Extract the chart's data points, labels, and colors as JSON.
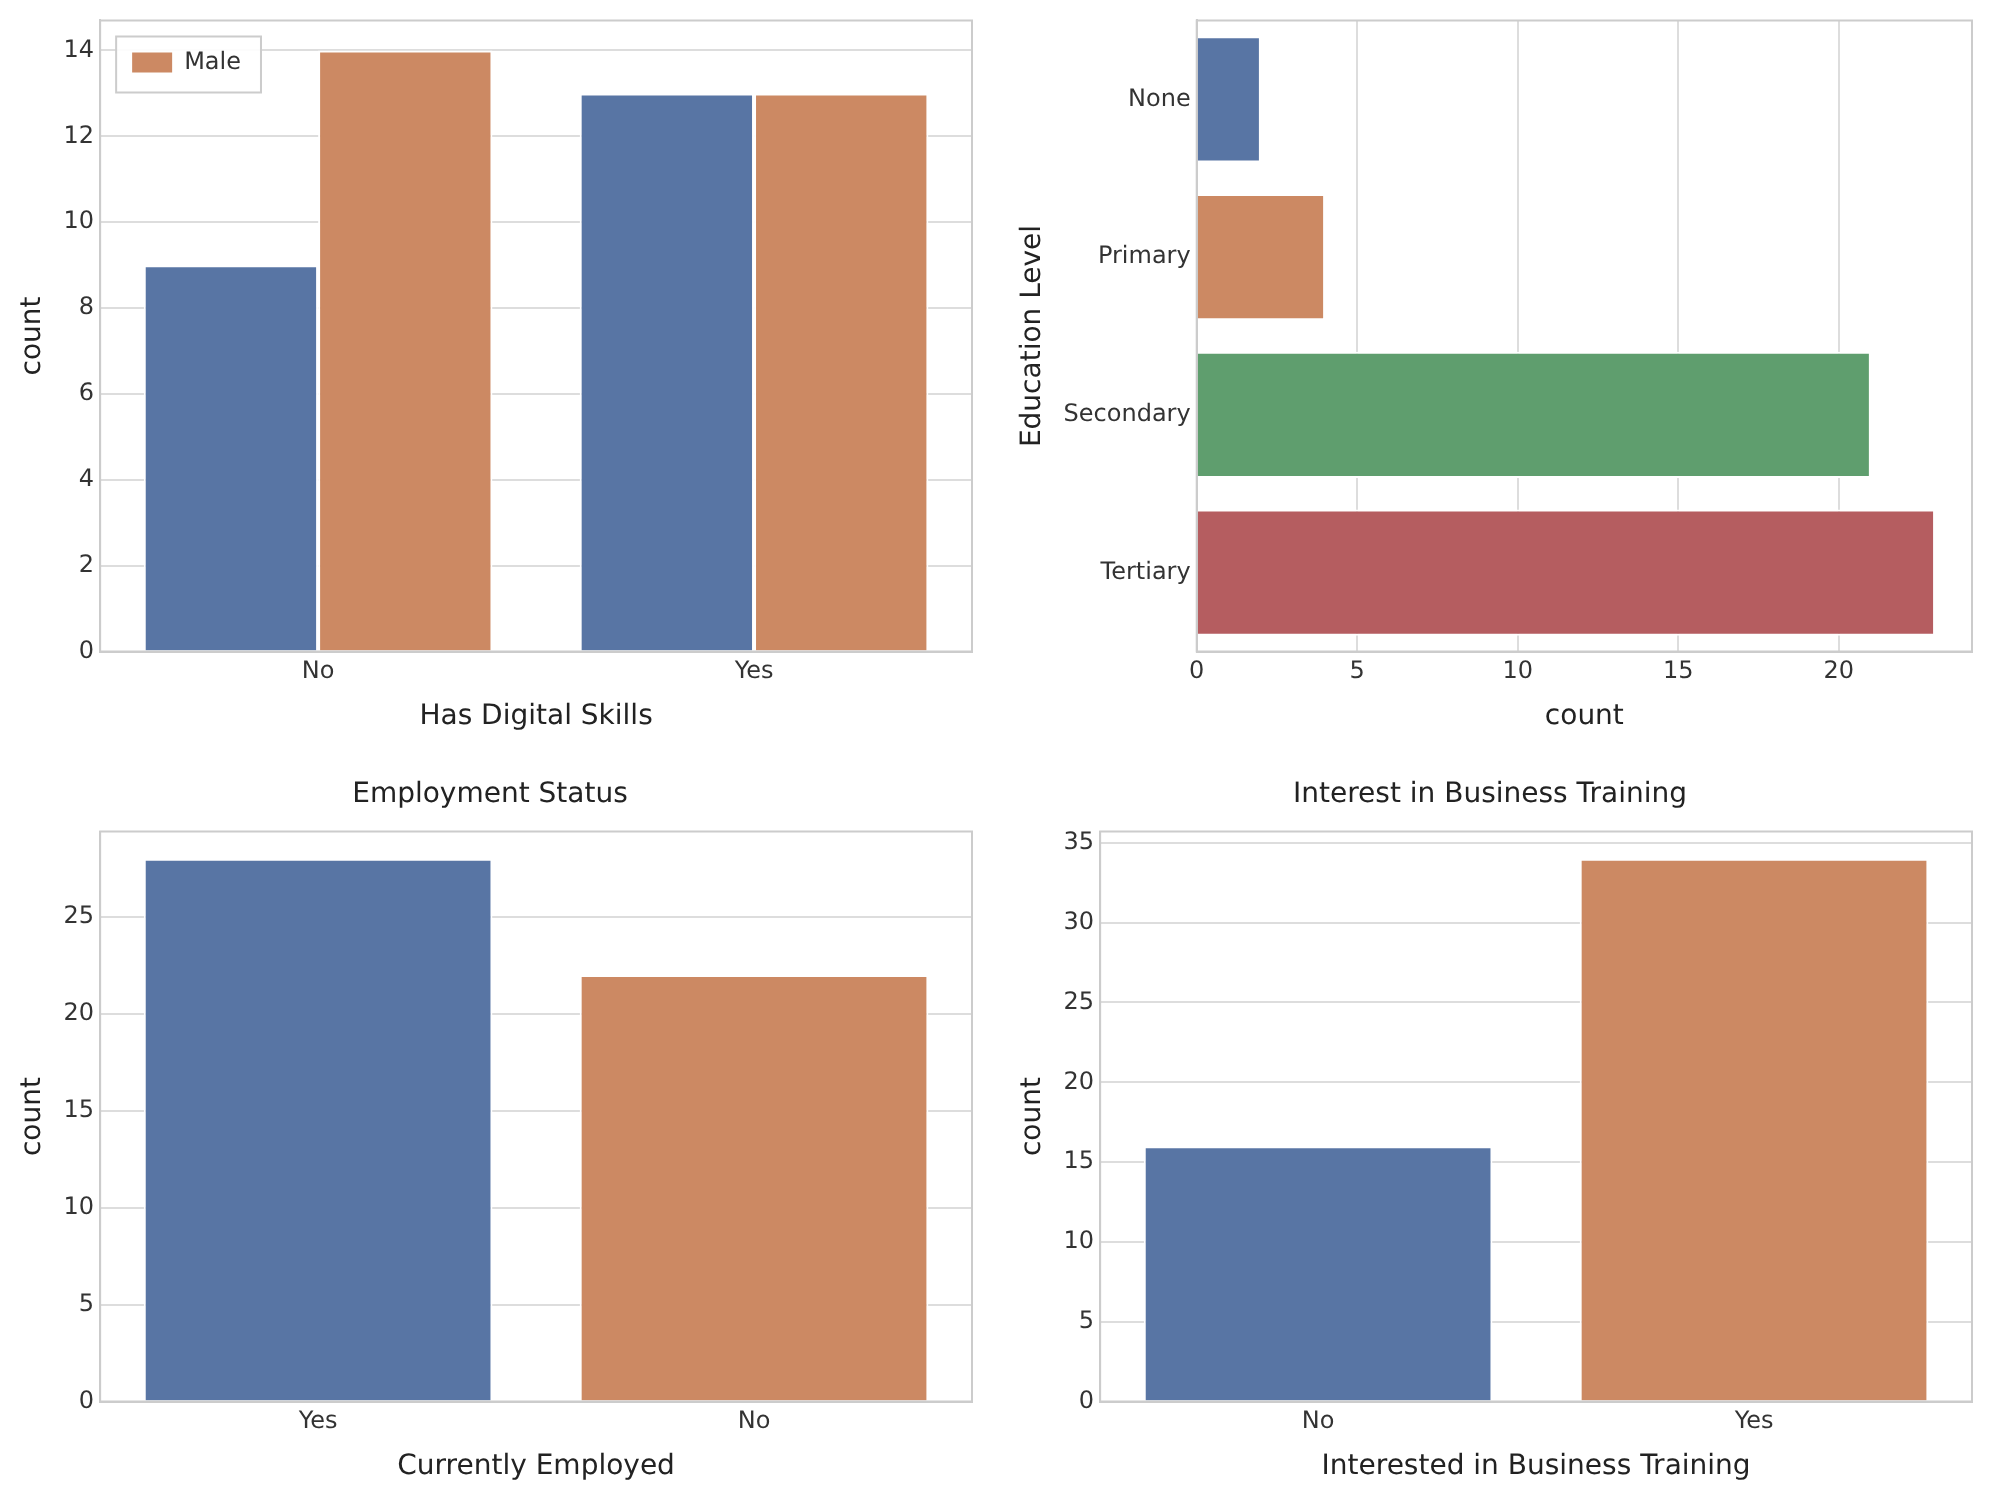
{
  "chart_data": [
    {
      "type": "bar",
      "categories": [
        "No",
        "Yes"
      ],
      "series": [
        {
          "color": "#5875a4",
          "values": [
            9,
            13
          ]
        },
        {
          "name": "Male",
          "color": "#cc8963",
          "values": [
            14,
            13
          ]
        }
      ],
      "xlabel": "Has Digital Skills",
      "ylabel": "count",
      "ylim": [
        0,
        14.7
      ],
      "yticks": [
        0,
        2,
        4,
        6,
        8,
        10,
        12,
        14
      ],
      "grid": "y",
      "legend": "top left"
    },
    {
      "type": "bar",
      "orientation": "horizontal",
      "categories": [
        "None",
        "Primary",
        "Secondary",
        "Tertiary"
      ],
      "values": [
        2,
        4,
        21,
        23
      ],
      "colors": [
        "#5875a4",
        "#cc8963",
        "#5f9e6e",
        "#b55d60"
      ],
      "xlabel": "count",
      "ylabel": "Education Level",
      "xlim": [
        0,
        24.15
      ],
      "xticks": [
        0,
        5,
        10,
        15,
        20
      ],
      "grid": "x"
    },
    {
      "type": "bar",
      "title": "Employment Status",
      "categories": [
        "Yes",
        "No"
      ],
      "values": [
        28,
        22
      ],
      "colors": [
        "#5875a4",
        "#cc8963"
      ],
      "xlabel": "Currently Employed",
      "ylabel": "count",
      "ylim": [
        0,
        29.4
      ],
      "yticks": [
        0,
        5,
        10,
        15,
        20,
        25
      ],
      "grid": "y"
    },
    {
      "type": "bar",
      "title": "Interest in Business Training",
      "categories": [
        "No",
        "Yes"
      ],
      "values": [
        16,
        34
      ],
      "colors": [
        "#5875a4",
        "#cc8963"
      ],
      "xlabel": "Interested in Business Training",
      "ylabel": "count",
      "ylim": [
        0,
        35.7
      ],
      "yticks": [
        0,
        5,
        10,
        15,
        20,
        25,
        30,
        35
      ],
      "grid": "y"
    }
  ]
}
